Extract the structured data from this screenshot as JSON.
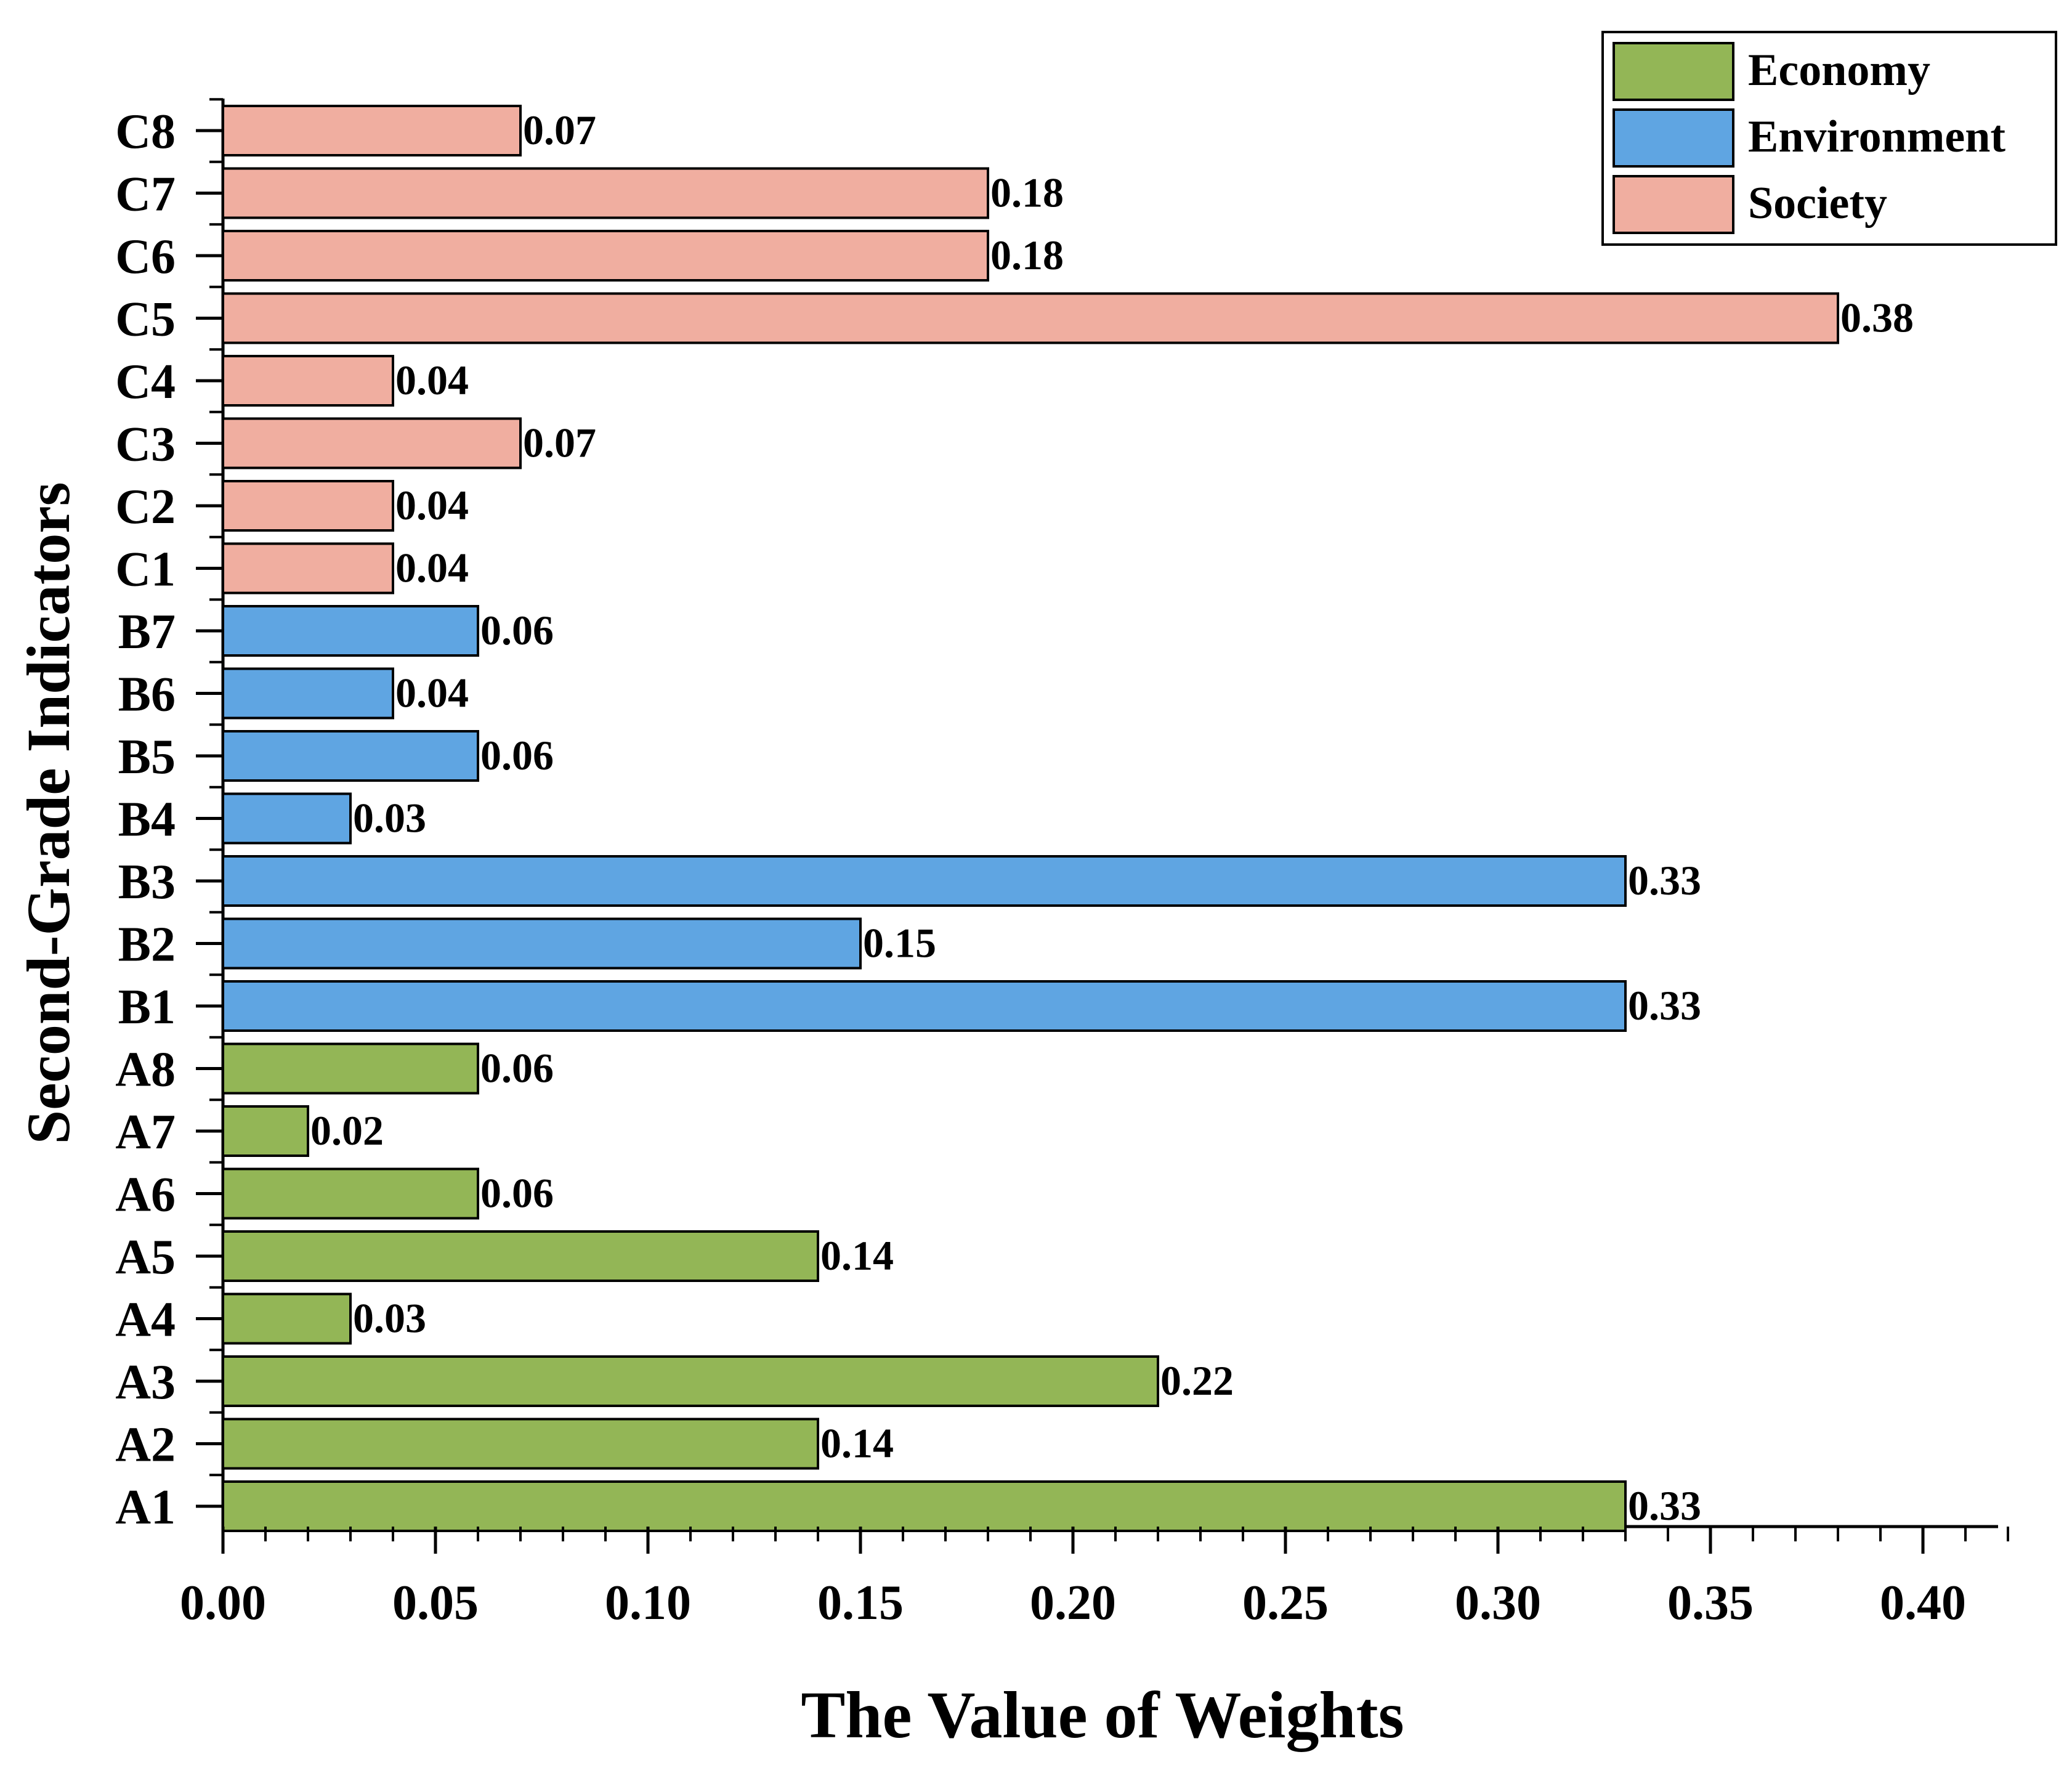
{
  "chart_data": {
    "type": "bar",
    "orientation": "horizontal",
    "title": "",
    "xlabel": "The Value of Weights",
    "ylabel": "Second-Grade Indicators",
    "xlim": [
      0,
      0.42
    ],
    "x_ticks": [
      "0.00",
      "0.05",
      "0.10",
      "0.15",
      "0.20",
      "0.25",
      "0.30",
      "0.35",
      "0.40"
    ],
    "x_tick_values": [
      0,
      0.05,
      0.1,
      0.15,
      0.2,
      0.25,
      0.3,
      0.35,
      0.4
    ],
    "legend_position": "top-right",
    "series": [
      {
        "name": "Economy",
        "color": "#93b656",
        "categories": [
          "A1",
          "A2",
          "A3",
          "A4",
          "A5",
          "A6",
          "A7",
          "A8"
        ],
        "values": [
          0.33,
          0.14,
          0.22,
          0.03,
          0.14,
          0.06,
          0.02,
          0.06
        ],
        "labels": [
          "0.33",
          "0.14",
          "0.22",
          "0.03",
          "0.14",
          "0.06",
          "0.02",
          "0.06"
        ]
      },
      {
        "name": "Environment",
        "color": "#5fa5e2",
        "categories": [
          "B1",
          "B2",
          "B3",
          "B4",
          "B5",
          "B6",
          "B7"
        ],
        "values": [
          0.33,
          0.15,
          0.33,
          0.03,
          0.06,
          0.04,
          0.06
        ],
        "labels": [
          "0.33",
          "0.15",
          "0.33",
          "0.03",
          "0.06",
          "0.04",
          "0.06"
        ]
      },
      {
        "name": "Society",
        "color": "#f0aea0",
        "categories": [
          "C1",
          "C2",
          "C3",
          "C4",
          "C5",
          "C6",
          "C7",
          "C8"
        ],
        "values": [
          0.04,
          0.04,
          0.07,
          0.04,
          0.38,
          0.18,
          0.18,
          0.07
        ],
        "labels": [
          "0.04",
          "0.04",
          "0.07",
          "0.04",
          "0.38",
          "0.18",
          "0.18",
          "0.07"
        ]
      }
    ]
  }
}
